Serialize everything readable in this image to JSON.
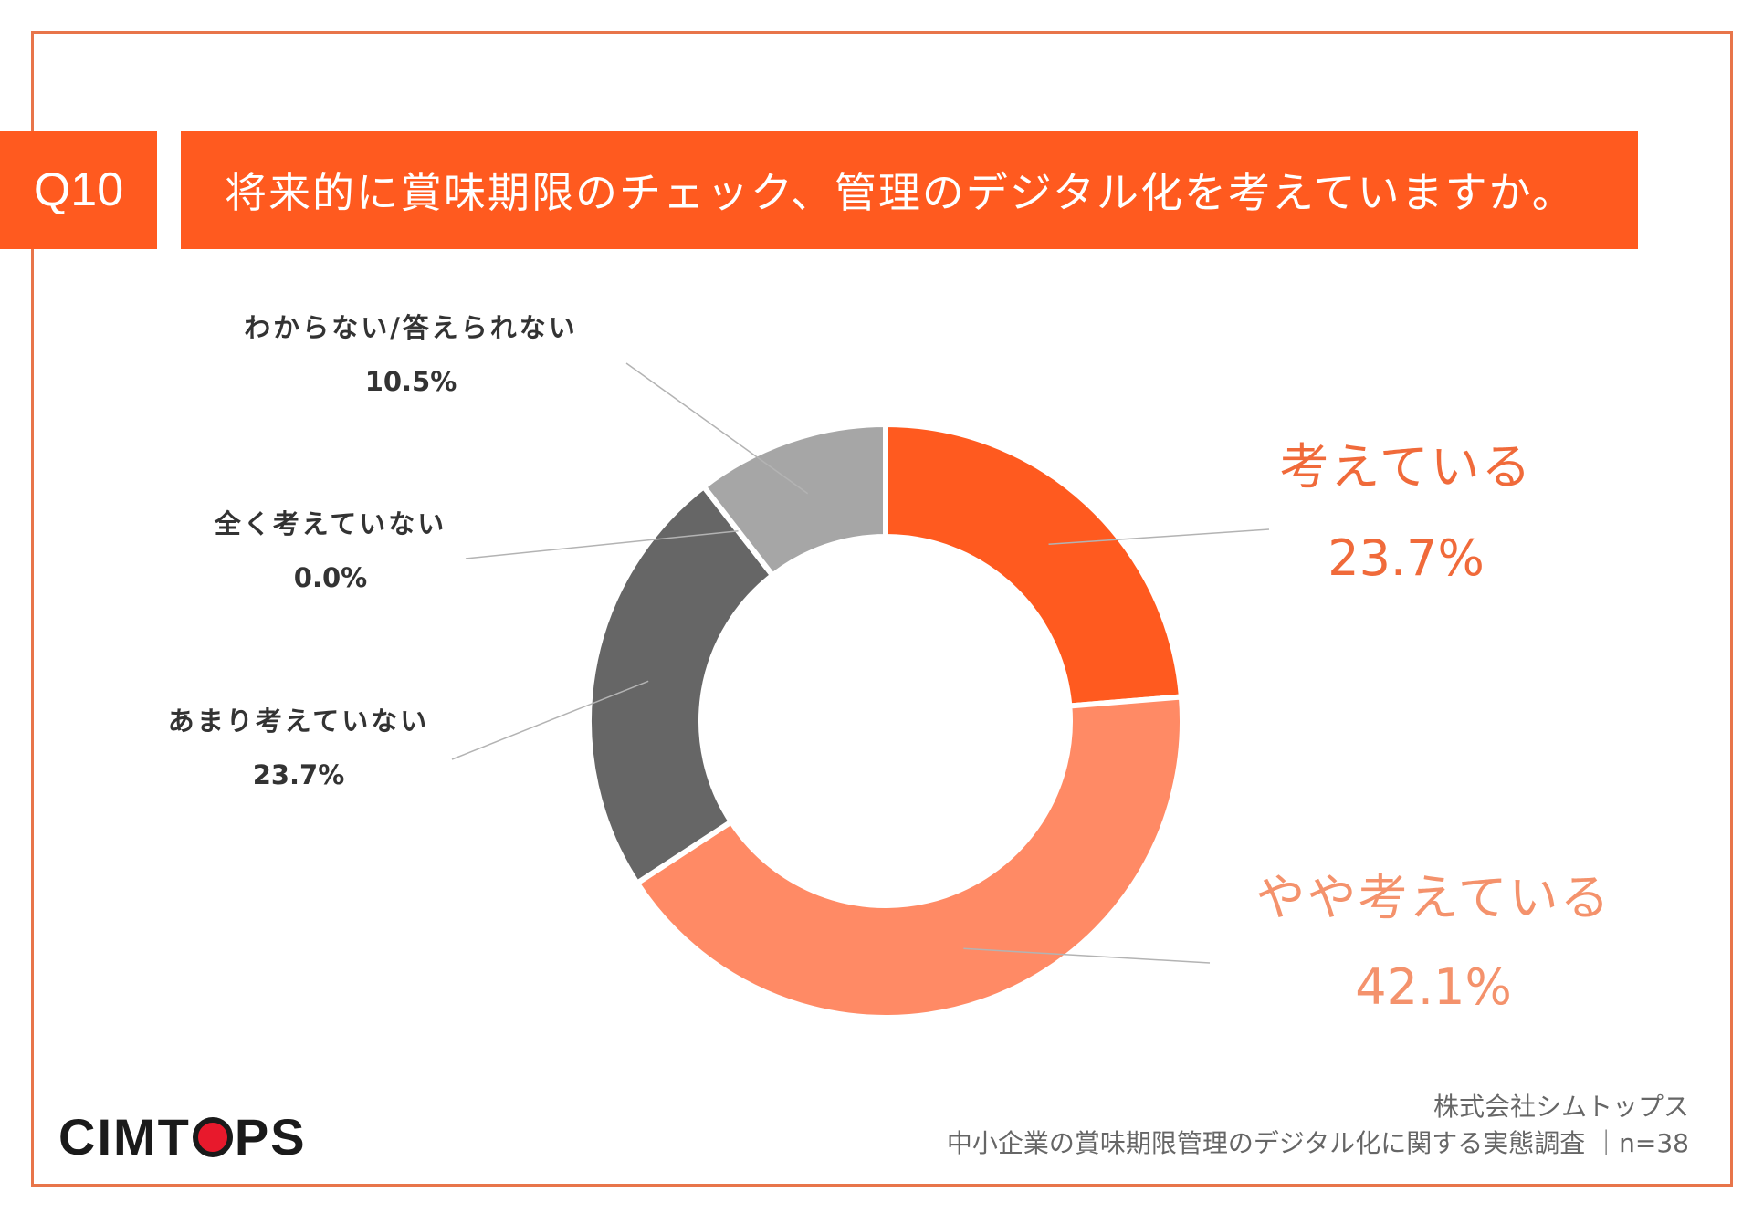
{
  "question": {
    "number": "Q10",
    "text": "将来的に賞味期限のチェック、管理のデジタル化を考えていますか。"
  },
  "chart_data": {
    "type": "pie",
    "style": "donut",
    "slices": [
      {
        "label": "考えている",
        "value": 23.7,
        "display": "23.7%",
        "color": "#ff5a1f"
      },
      {
        "label": "やや考えている",
        "value": 42.1,
        "display": "42.1%",
        "color": "#ff8a65"
      },
      {
        "label": "あまり考えていない",
        "value": 23.7,
        "display": "23.7%",
        "color": "#666666"
      },
      {
        "label": "全く考えていない",
        "value": 0.0,
        "display": "0.0%",
        "color": "#595959"
      },
      {
        "label": "わからない/答えられない",
        "value": 10.5,
        "display": "10.5%",
        "color": "#a6a6a6"
      }
    ]
  },
  "logo": {
    "pre": "CIMT",
    "post": "PS"
  },
  "source": {
    "company": "株式会社シムトップス",
    "survey": "中小企業の賞味期限管理のデジタル化に関する実態調査 ｜n=38"
  }
}
